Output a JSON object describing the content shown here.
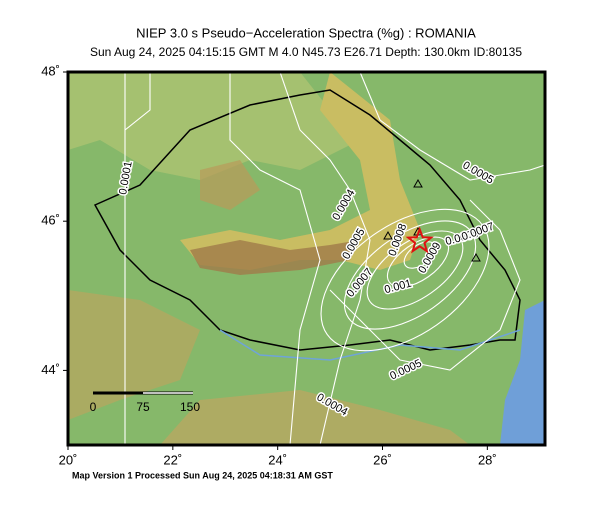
{
  "map": {
    "title": "NIEP 3.0 s Pseudo−Acceleration Spectra (%g) : ROMANIA",
    "subtitle": "Sun Aug 24, 2025 04:15:15 GMT   M 4.0   N45.73 E26.71   Depth: 130.0km   ID:80135",
    "lonlim": [
      20,
      29.1
    ],
    "latlim": [
      43,
      48
    ],
    "lon_ticks": [
      {
        "value": 20,
        "label": "20˚"
      },
      {
        "value": 22,
        "label": "22˚"
      },
      {
        "value": 24,
        "label": "24˚"
      },
      {
        "value": 26,
        "label": "26˚"
      },
      {
        "value": 28,
        "label": "28˚"
      }
    ],
    "lat_ticks": [
      {
        "value": 48,
        "label": "48˚"
      },
      {
        "value": 46,
        "label": "46˚"
      },
      {
        "value": 44,
        "label": "44˚"
      }
    ],
    "epicenter": {
      "lon": 26.71,
      "lat": 45.73
    },
    "contour_labels": [
      "0.0001",
      "0.0004",
      "0.0005",
      "0.0007",
      "0.0008",
      "0.0009",
      "0.001",
      "0.0008",
      "0.0007",
      "0.0005",
      "0.0005",
      "0.0004"
    ],
    "scale_labels": [
      "0",
      "75",
      "150"
    ],
    "footer": "Map Version 1 Processed Sun Aug 24, 2025 04:18:31 AM GST"
  }
}
